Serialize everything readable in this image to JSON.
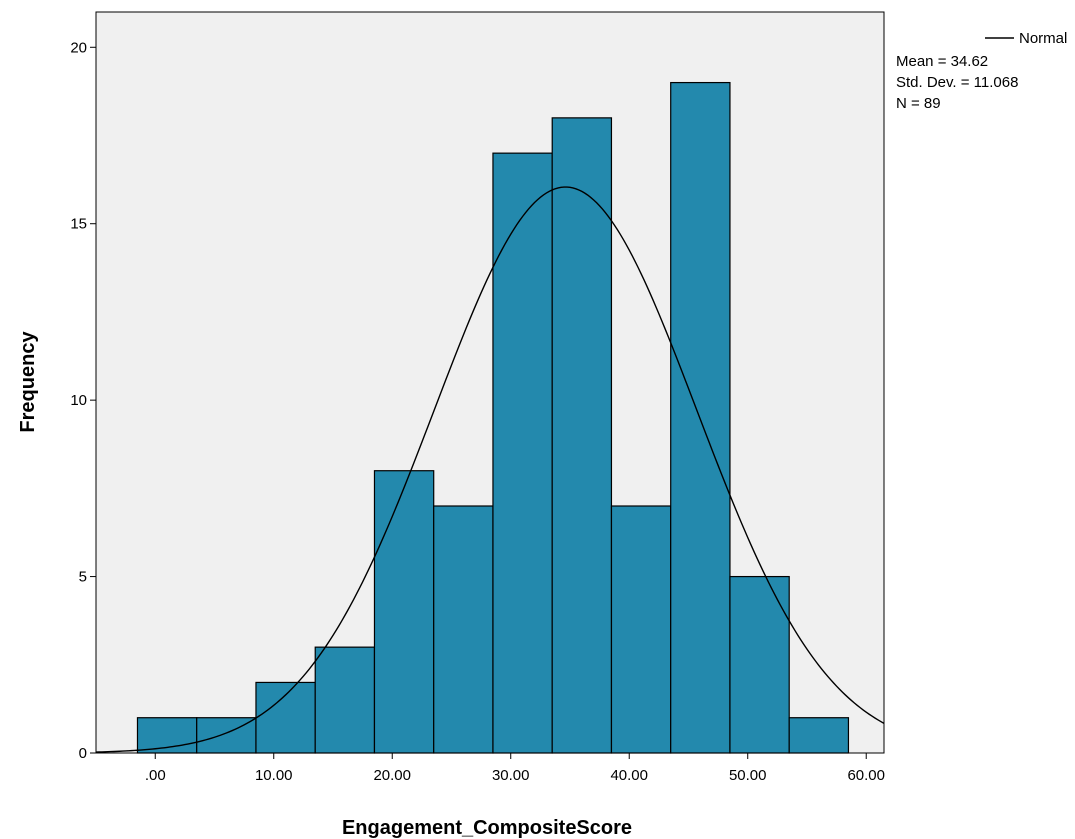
{
  "chart_data": {
    "type": "bar",
    "subtype": "histogram",
    "bins": [
      {
        "start": -1.5,
        "end": 3.5,
        "count": 1
      },
      {
        "start": 3.5,
        "end": 8.5,
        "count": 1
      },
      {
        "start": 8.5,
        "end": 13.5,
        "count": 2
      },
      {
        "start": 13.5,
        "end": 18.5,
        "count": 3
      },
      {
        "start": 18.5,
        "end": 23.5,
        "count": 8
      },
      {
        "start": 23.5,
        "end": 28.5,
        "count": 7
      },
      {
        "start": 28.5,
        "end": 33.5,
        "count": 17
      },
      {
        "start": 33.5,
        "end": 38.5,
        "count": 18
      },
      {
        "start": 38.5,
        "end": 43.5,
        "count": 7
      },
      {
        "start": 43.5,
        "end": 48.5,
        "count": 19
      },
      {
        "start": 48.5,
        "end": 53.5,
        "count": 5
      },
      {
        "start": 53.5,
        "end": 58.5,
        "count": 1
      }
    ],
    "normal_curve": {
      "mean": 34.62,
      "std_dev": 11.068,
      "n": 89,
      "bin_width": 5
    },
    "xlabel": "Engagement_CompositeScore",
    "ylabel": "Frequency",
    "xlim": [
      -5,
      61.5
    ],
    "ylim": [
      0,
      21
    ],
    "xticks": [
      0,
      10,
      20,
      30,
      40,
      50,
      60
    ],
    "xtick_labels": [
      ".00",
      "10.00",
      "20.00",
      "30.00",
      "40.00",
      "50.00",
      "60.00"
    ],
    "yticks": [
      0,
      5,
      10,
      15,
      20
    ],
    "ytick_labels": [
      "0",
      "5",
      "10",
      "15",
      "20"
    ],
    "legend": {
      "position": "top-right",
      "series_label": "Normal",
      "stats": [
        "Mean = 34.62",
        "Std. Dev. = 11.068",
        "N = 89"
      ]
    },
    "colors": {
      "bar_fill": "#2389ad",
      "bar_stroke": "#000000",
      "plot_background": "#f0f0f0",
      "curve": "#000000"
    },
    "grid": false
  }
}
